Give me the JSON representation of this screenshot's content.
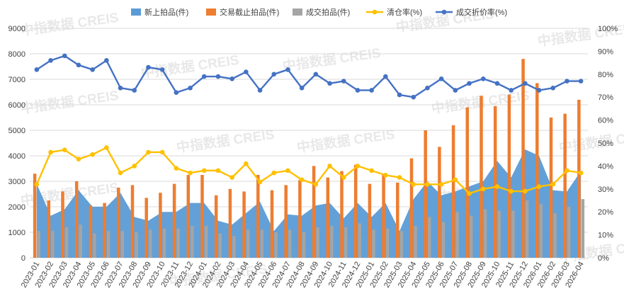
{
  "chart_data": {
    "type": "bar",
    "title": "",
    "categories": [
      "2023-01",
      "2023-02",
      "2023-03",
      "2023-04",
      "2023-05",
      "2023-06",
      "2023-07",
      "2023-08",
      "2023-09",
      "2023-10",
      "2023-11",
      "2023-12",
      "2024-01",
      "2024-02",
      "2024-03",
      "2024-04",
      "2024-05",
      "2024-06",
      "2024-07",
      "2024-08",
      "2024-09",
      "2024-10",
      "2024-11",
      "2024-12",
      "2025-01",
      "2025-02",
      "2025-03",
      "2025-04",
      "2025-05",
      "2025-06",
      "2025-07",
      "2025-08",
      "2025-09",
      "2025-10",
      "2025-11",
      "2025-12",
      "2026-01",
      "2026-02",
      "2026-03",
      "2026-04"
    ],
    "y_left": {
      "min": 0,
      "max": 9000,
      "step": 1000,
      "ticks": [
        "0",
        "1000",
        "2000",
        "3000",
        "4000",
        "5000",
        "6000",
        "7000",
        "8000",
        "9000"
      ]
    },
    "y_right": {
      "min": 0,
      "max": 100,
      "step": 10,
      "ticks": [
        "0%",
        "10%",
        "20%",
        "30%",
        "40%",
        "50%",
        "60%",
        "70%",
        "80%",
        "90%",
        "100%"
      ]
    },
    "grid": true,
    "legend_position": "top",
    "series": [
      {
        "name": "新上拍品(件)",
        "kind": "area",
        "axis": "left",
        "color": "#5b9bd5",
        "values": [
          2900,
          1650,
          1900,
          2650,
          2000,
          2000,
          2550,
          1600,
          1450,
          1800,
          1800,
          2150,
          2150,
          1450,
          1300,
          1750,
          2200,
          1050,
          1700,
          1650,
          2050,
          2150,
          1550,
          2150,
          1600,
          2150,
          1050,
          2300,
          3000,
          2450,
          2600,
          2800,
          3000,
          3800,
          3150,
          4250,
          4000,
          2650,
          2600,
          3400
        ]
      },
      {
        "name": "交易截止拍品(件)",
        "kind": "bar",
        "axis": "left",
        "color": "#ed7d31",
        "values": [
          3300,
          2250,
          2600,
          3000,
          2050,
          2150,
          2750,
          2850,
          2350,
          2550,
          2900,
          3250,
          3250,
          2450,
          2700,
          2600,
          3250,
          2650,
          2850,
          3050,
          3600,
          3150,
          3400,
          3650,
          2900,
          3300,
          2950,
          3900,
          5000,
          4350,
          5200,
          5900,
          6350,
          5950,
          6400,
          7800,
          6850,
          5500,
          5650,
          6200
        ]
      },
      {
        "name": "成交拍品(件)",
        "kind": "bar",
        "axis": "left",
        "color": "#a5a5a5",
        "values": [
          1050,
          1050,
          1200,
          1300,
          950,
          1050,
          1050,
          1000,
          1100,
          1150,
          1150,
          1250,
          1250,
          950,
          850,
          1100,
          1100,
          1000,
          1100,
          1000,
          1200,
          1250,
          1200,
          1350,
          1100,
          1150,
          1050,
          1250,
          1600,
          1400,
          1800,
          1650,
          1900,
          1850,
          1850,
          2250,
          2100,
          1750,
          2000,
          2300
        ]
      },
      {
        "name": "清仓率(%)",
        "kind": "line",
        "axis": "right",
        "color": "#ffc000",
        "values": [
          32,
          46,
          47,
          43,
          45,
          48,
          37,
          40,
          46,
          46,
          39,
          37,
          38,
          38,
          35,
          41,
          33,
          37,
          38,
          34,
          32,
          40,
          35,
          40,
          38,
          36,
          35,
          32,
          32,
          32,
          34,
          28,
          30,
          31,
          29,
          29,
          31,
          32,
          38,
          37
        ]
      },
      {
        "name": "成交折价率(%)",
        "kind": "line",
        "axis": "right",
        "color": "#4472c4",
        "values": [
          82,
          86,
          88,
          84,
          82,
          86,
          74,
          73,
          83,
          82,
          72,
          74,
          79,
          79,
          78,
          81,
          73,
          80,
          82,
          74,
          80,
          76,
          77,
          73,
          73,
          79,
          71,
          70,
          74,
          78,
          73,
          76,
          78,
          76,
          73,
          76,
          73,
          74,
          77,
          77
        ]
      }
    ],
    "watermark": "中指数据 CREIS"
  }
}
